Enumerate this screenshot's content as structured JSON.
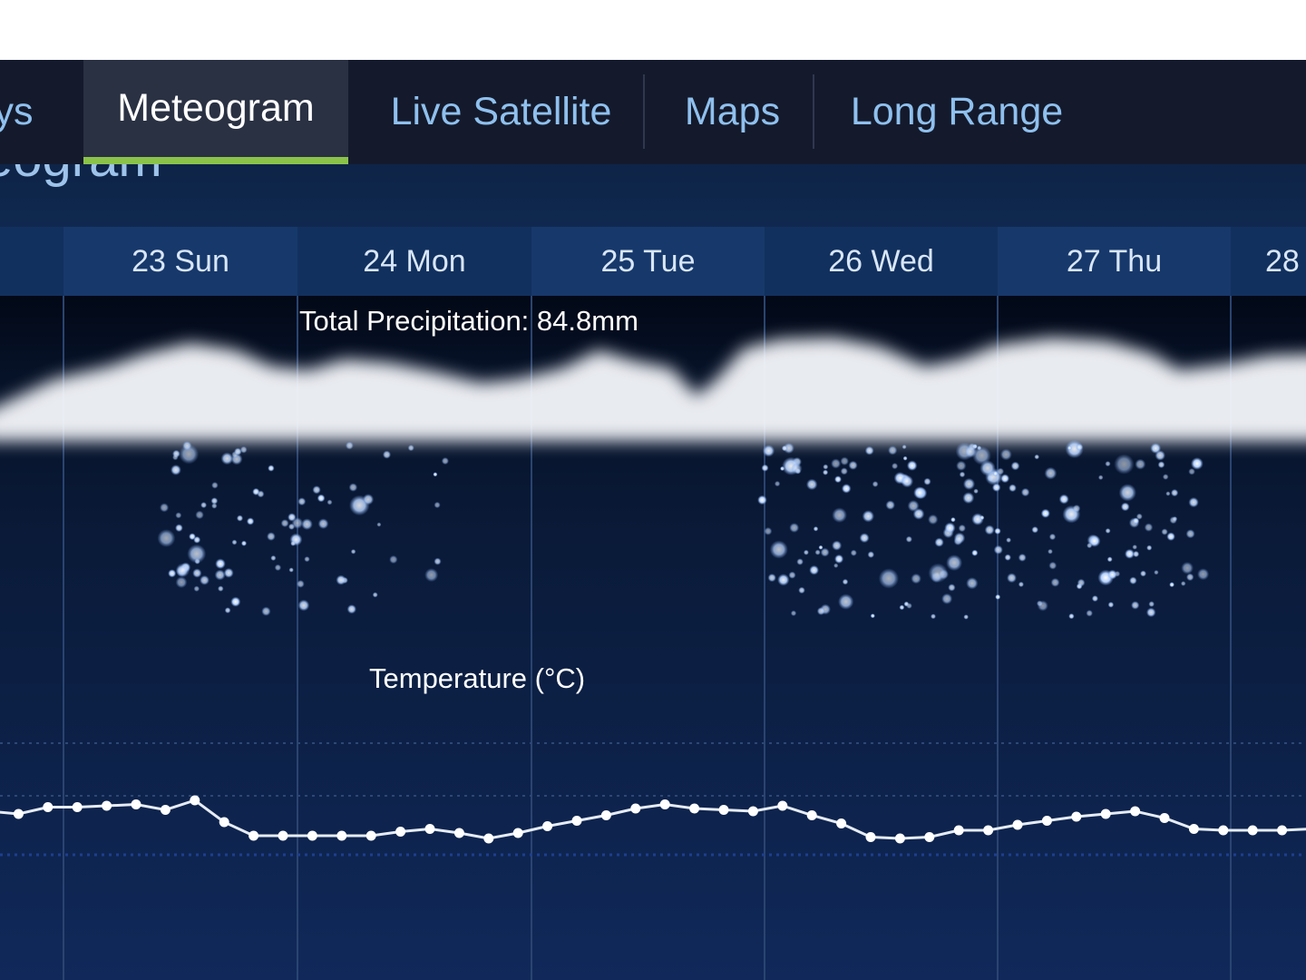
{
  "nav": {
    "tabs": [
      {
        "label": "ys",
        "active": false
      },
      {
        "label": "Meteogram",
        "active": true
      },
      {
        "label": "Live Satellite",
        "active": false
      },
      {
        "label": "Maps",
        "active": false
      },
      {
        "label": "Long Range",
        "active": false
      }
    ]
  },
  "panel": {
    "title": "eogram"
  },
  "days": [
    "23 Sun",
    "24 Mon",
    "25 Tue",
    "26 Wed",
    "27 Thu",
    "28"
  ],
  "precipitation": {
    "label": "Total Precipitation: 84.8mm",
    "snow_days": [
      "23 Sun",
      "24 Mon",
      "26 Wed",
      "27 Thu"
    ]
  },
  "temperature": {
    "label": "Temperature (°C)"
  },
  "colors": {
    "nav_bg": "#141a2c",
    "active_tab_underline": "#8bc34a",
    "tab_text": "#8fc0ee",
    "snow": "#a9ccff"
  },
  "chart_data": {
    "type": "line",
    "title": "Temperature (°C)",
    "series": [
      {
        "values": [
          1.2,
          1.0,
          1.5,
          1.5,
          1.6,
          1.7,
          1.3,
          2.0,
          0.4,
          -0.6,
          -0.6,
          -0.6,
          -0.6,
          -0.6,
          -0.3,
          -0.1,
          -0.4,
          -0.8,
          -0.4,
          0.1,
          0.5,
          0.9,
          1.4,
          1.7,
          1.4,
          1.3,
          1.2,
          1.6,
          0.9,
          0.3,
          -0.7,
          -0.8,
          -0.7,
          -0.2,
          -0.2,
          0.2,
          0.5,
          0.8,
          1.0,
          1.2,
          0.7,
          -0.1,
          -0.2,
          -0.2,
          -0.2,
          -0.1
        ]
      }
    ],
    "ylim": [
      -5,
      10
    ],
    "grid": true
  }
}
